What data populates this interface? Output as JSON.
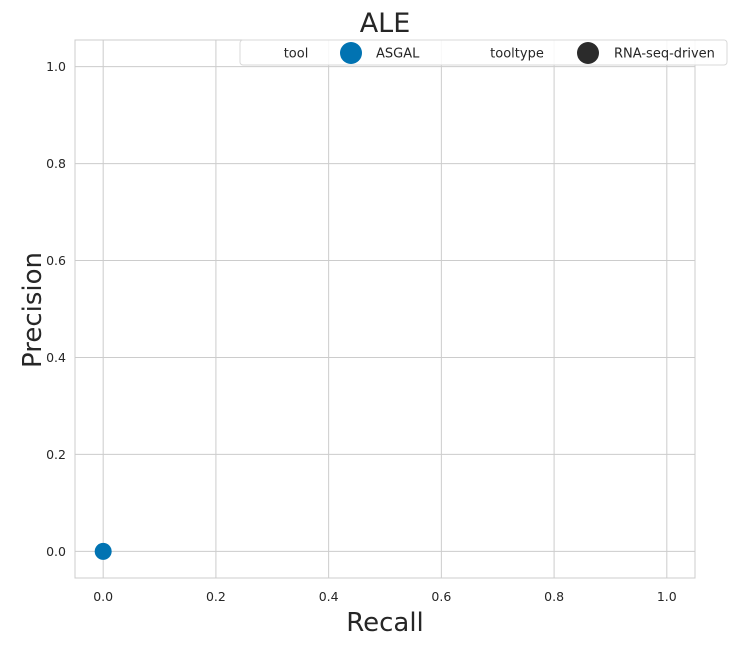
{
  "chart_data": {
    "type": "scatter",
    "title": "ALE",
    "xlabel": "Recall",
    "ylabel": "Precision",
    "xlim": [
      -0.05,
      1.05
    ],
    "ylim": [
      -0.055,
      1.055
    ],
    "xticks": [
      0.0,
      0.2,
      0.4,
      0.6,
      0.8,
      1.0
    ],
    "yticks": [
      0.0,
      0.2,
      0.4,
      0.6,
      0.8,
      1.0
    ],
    "xtick_labels": [
      "0.0",
      "0.2",
      "0.4",
      "0.6",
      "0.8",
      "1.0"
    ],
    "ytick_labels": [
      "0.0",
      "0.2",
      "0.4",
      "0.6",
      "0.8",
      "1.0"
    ],
    "grid": true,
    "legend_placement": "top-right",
    "legend": [
      {
        "kind": "header",
        "label": "tool"
      },
      {
        "kind": "marker",
        "label": "ASGAL",
        "color": "#0173b2"
      },
      {
        "kind": "header",
        "label": "tooltype"
      },
      {
        "kind": "marker",
        "label": "RNA-seq-driven",
        "color": "#2b2b2b"
      }
    ],
    "series": [
      {
        "name": "ASGAL",
        "color": "#0173b2",
        "points": [
          {
            "x": 0.0,
            "y": 0.0
          }
        ]
      }
    ]
  }
}
